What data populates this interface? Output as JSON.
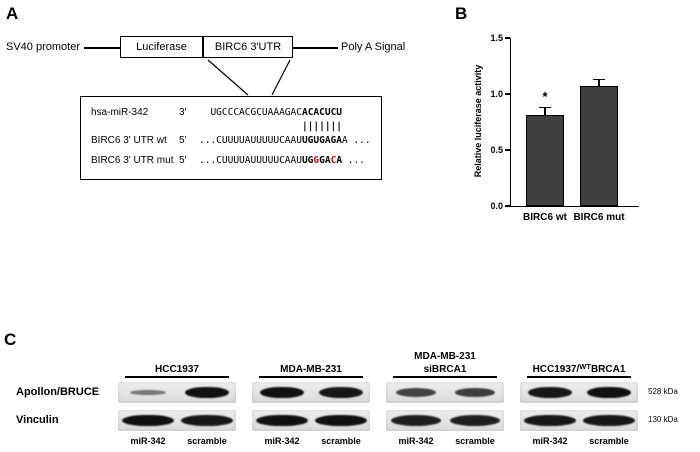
{
  "panelA": {
    "label": "A",
    "construct": {
      "promoter": "SV40 promoter",
      "luciferase": "Luciferase",
      "utr": "BIRC6 3'UTR",
      "polya": "Poly A Signal"
    },
    "alignment": {
      "rows": [
        {
          "name": "hsa-miR-342",
          "dir": "3'",
          "pad": 2,
          "segments": [
            [
              "UGCCCACGCUAAAGAC",
              "n"
            ],
            [
              "ACACUCU",
              "b"
            ]
          ]
        },
        {
          "name": "",
          "dir": "",
          "pad": 18,
          "segments": [
            [
              "|||||||",
              "p"
            ]
          ]
        },
        {
          "name": "BIRC6 3' UTR wt",
          "dir": "5'",
          "pad": 0,
          "segments": [
            [
              "...CUUUUAUUUUUCAAU",
              "n"
            ],
            [
              "UGUGAGA",
              "b"
            ],
            [
              "A ...",
              "n"
            ]
          ]
        },
        {
          "name": "BIRC6 3' UTR mut",
          "dir": "5'",
          "pad": 0,
          "segments": [
            [
              "...CUUUUAUUUUUCAAU",
              "n"
            ],
            [
              "UG",
              "b"
            ],
            [
              "G",
              "r"
            ],
            [
              "GA",
              "b"
            ],
            [
              "C",
              "r"
            ],
            [
              "A",
              "b"
            ],
            [
              " ...",
              "n"
            ]
          ]
        }
      ]
    }
  },
  "panelB": {
    "label": "B"
  },
  "chart_data": {
    "type": "bar",
    "categories": [
      "BIRC6 wt",
      "BIRC6 mut"
    ],
    "values": [
      0.81,
      1.07
    ],
    "errors": [
      0.07,
      0.06
    ],
    "significance": [
      "*",
      ""
    ],
    "title": "",
    "xlabel": "",
    "ylabel": "Relative luciferase activity",
    "yticks": [
      0.0,
      0.5,
      1.0,
      1.5
    ],
    "ylim": [
      0,
      1.5
    ],
    "bar_color": "#3f3f3f",
    "grid": false,
    "legend": false
  },
  "panelC": {
    "label": "C",
    "row_labels": [
      "Apollon/BRUCE",
      "Vinculin"
    ],
    "kda_labels": [
      "528 kDa",
      "130 kDa"
    ],
    "lane_labels": [
      "miR-342",
      "scramble"
    ],
    "groups": [
      {
        "title_lines": [
          [
            [
              "HCC1937",
              "n"
            ]
          ]
        ],
        "bands": {
          "apollon": [
            0.3,
            1.0
          ],
          "vinculin": [
            1.0,
            0.95
          ]
        }
      },
      {
        "title_lines": [
          [
            [
              "MDA-MB-231",
              "n"
            ]
          ]
        ],
        "bands": {
          "apollon": [
            1.0,
            0.95
          ],
          "vinculin": [
            1.0,
            1.0
          ]
        }
      },
      {
        "title_lines": [
          [
            [
              "MDA-MB-231",
              "n"
            ]
          ],
          [
            [
              "siBRCA1",
              "n"
            ]
          ]
        ],
        "bands": {
          "apollon": [
            0.65,
            0.7
          ],
          "vinculin": [
            0.9,
            0.9
          ]
        }
      },
      {
        "title_lines": [
          [
            [
              "HCC1937/",
              "n"
            ],
            [
              "WT",
              "sup"
            ],
            [
              "BRCA1",
              "n"
            ]
          ]
        ],
        "bands": {
          "apollon": [
            0.95,
            1.0
          ],
          "vinculin": [
            0.95,
            0.95
          ]
        }
      }
    ]
  }
}
